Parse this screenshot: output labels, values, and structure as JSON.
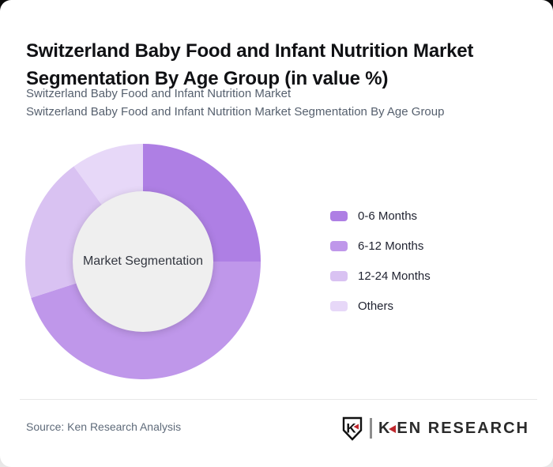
{
  "page": {
    "title_line1": "Switzerland Baby Food and Infant Nutrition Market",
    "title_line2": "Segmentation By Age Group (in value %)",
    "subtitle_line1": "Switzerland Baby Food and Infant Nutrition Market",
    "subtitle_line2": "Switzerland Baby Food and Infant Nutrition Market Segmentation By Age Group"
  },
  "chart_data": {
    "type": "pie",
    "variant": "donut",
    "title": "Switzerland Baby Food and Infant Nutrition Market Segmentation By Age Group (in value %)",
    "center_label": "Market Segmentation",
    "categories": [
      "0-6 Months",
      "6-12 Months",
      "12-24 Months",
      "Others"
    ],
    "values": [
      25,
      45,
      20,
      10
    ],
    "unit": "%",
    "colors": [
      "#ae7fe4",
      "#bf97ea",
      "#d9c2f2",
      "#e7d8f8"
    ],
    "start_angle_deg": 0,
    "direction": "clockwise",
    "inner_radius_ratio": 0.6,
    "inner_circle_color": "#efefef",
    "legend_position": "right",
    "data_labels_shown": false
  },
  "legend": {
    "items": [
      {
        "label": "0-6 Months",
        "color": "#ae7fe4"
      },
      {
        "label": "6-12 Months",
        "color": "#bf97ea"
      },
      {
        "label": "12-24 Months",
        "color": "#d9c2f2"
      },
      {
        "label": "Others",
        "color": "#e7d8f8"
      }
    ]
  },
  "footer": {
    "source_text": "Source: Ken Research Analysis",
    "logo": {
      "badge_letter": "K",
      "brand_text_k": "K",
      "brand_text_rest": "EN RESEARCH",
      "accent_color": "#c0272d"
    }
  }
}
